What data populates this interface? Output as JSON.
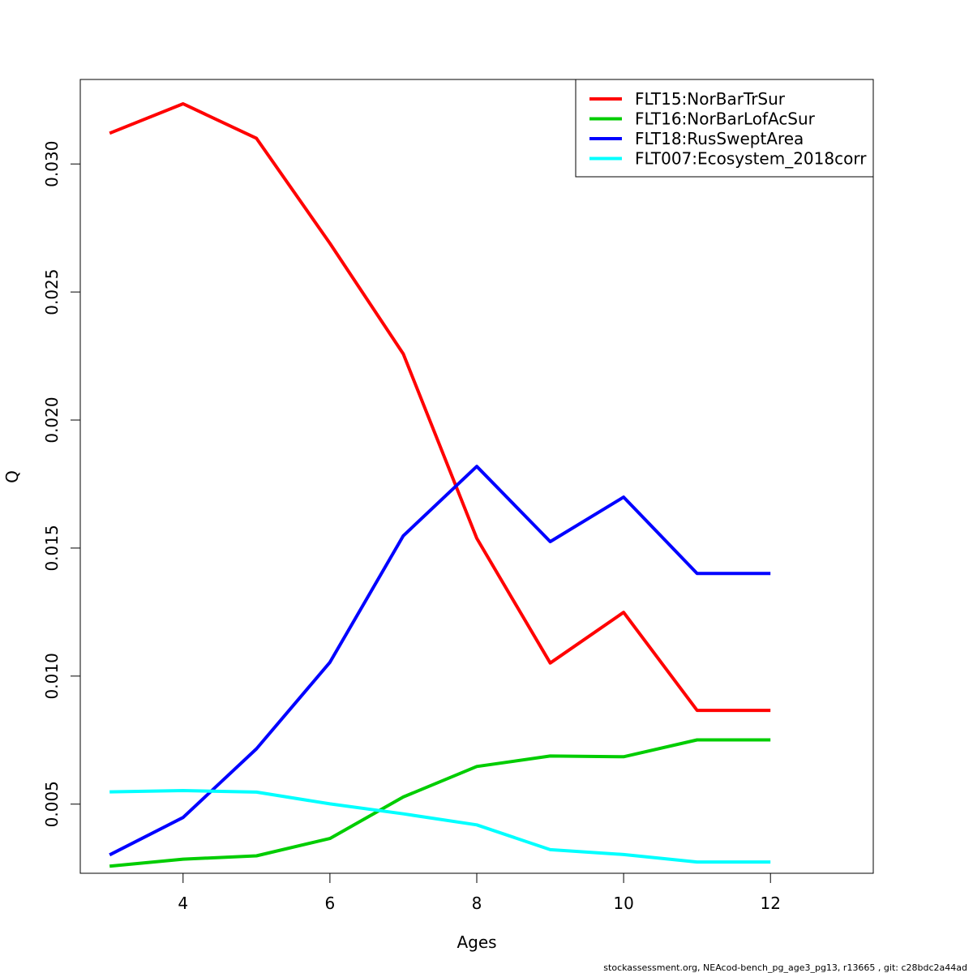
{
  "chart_data": {
    "type": "line",
    "title": "",
    "xlabel": "Ages",
    "ylabel": "Q",
    "x": [
      3,
      4,
      5,
      6,
      7,
      8,
      9,
      10,
      11,
      12
    ],
    "xlim": [
      2.6,
      13.4
    ],
    "ylim": [
      0.0023,
      0.0333
    ],
    "x_ticks": [
      4,
      6,
      8,
      10,
      12
    ],
    "x_tick_labels": [
      "4",
      "6",
      "8",
      "10",
      "12"
    ],
    "y_ticks": [
      0.005,
      0.01,
      0.015,
      0.02,
      0.025,
      0.03
    ],
    "y_tick_labels": [
      "0.005",
      "0.010",
      "0.015",
      "0.020",
      "0.025",
      "0.030"
    ],
    "grid": false,
    "legend_position": "top-right",
    "series": [
      {
        "name": "FLT15:NorBarTrSur",
        "color": "#ff0000",
        "values": [
          0.0312,
          0.03235,
          0.031,
          0.0269,
          0.02258,
          0.01538,
          0.01051,
          0.01249,
          0.00866,
          0.00866
        ]
      },
      {
        "name": "FLT16:NorBarLofAcSur",
        "color": "#00cd00",
        "values": [
          0.00258,
          0.00285,
          0.00298,
          0.00366,
          0.00528,
          0.00647,
          0.00688,
          0.00685,
          0.00751,
          0.00751
        ]
      },
      {
        "name": "FLT18:RusSweptArea",
        "color": "#0000ff",
        "values": [
          0.00302,
          0.00448,
          0.00716,
          0.01054,
          0.01548,
          0.01819,
          0.01525,
          0.01699,
          0.01401,
          0.01401
        ]
      },
      {
        "name": "FLT007:Ecosystem_2018corr",
        "color": "#00ffff",
        "values": [
          0.00548,
          0.00553,
          0.00547,
          0.00501,
          0.00462,
          0.00419,
          0.00322,
          0.00303,
          0.00274,
          0.00274
        ]
      }
    ]
  },
  "footer": {
    "note": "stockassessment.org, NEAcod-bench_pg_age3_pg13, r13665 , git: c28bdc2a44ad"
  }
}
